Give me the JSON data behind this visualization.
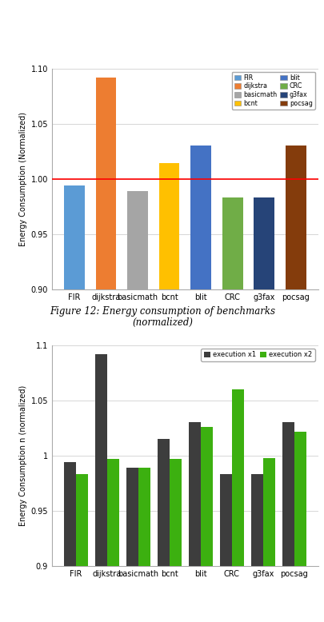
{
  "chart1": {
    "categories": [
      "FIR",
      "dijkstra",
      "basicmath",
      "bcnt",
      "blit",
      "CRC",
      "g3fax",
      "pocsag"
    ],
    "values": [
      0.994,
      1.092,
      0.989,
      1.014,
      1.03,
      0.983,
      0.983,
      1.03
    ],
    "colors": [
      "#5B9BD5",
      "#ED7D31",
      "#A5A5A5",
      "#FFC000",
      "#4472C4",
      "#70AD47",
      "#264478",
      "#843C0C"
    ],
    "ylabel": "Energy Consumption (Normalized)",
    "ylim": [
      0.9,
      1.1
    ],
    "yticks": [
      0.9,
      0.95,
      1.0,
      1.05,
      1.1
    ],
    "ytick_labels": [
      "0.90",
      "0.95",
      "1.00",
      "1.05",
      "1.10"
    ],
    "hline_y": 1.0,
    "hline_color": "#FF0000",
    "legend_labels": [
      "FIR",
      "dijkstra",
      "basicmath",
      "bcnt",
      "blit",
      "CRC",
      "g3fax",
      "pocsag"
    ],
    "legend_colors": [
      "#5B9BD5",
      "#ED7D31",
      "#A5A5A5",
      "#FFC000",
      "#4472C4",
      "#70AD47",
      "#264478",
      "#843C0C"
    ],
    "fig_caption_line1": "Figure 12: Energy consumption of benchmarks",
    "fig_caption_line2": "(normalized)"
  },
  "chart2": {
    "categories": [
      "FIR",
      "dijkstra",
      "basicmath",
      "bcnt",
      "blit",
      "CRC",
      "g3fax",
      "pocsag"
    ],
    "values_x1": [
      0.994,
      1.092,
      0.989,
      1.015,
      1.03,
      0.983,
      0.983,
      1.03
    ],
    "values_x2": [
      0.983,
      0.997,
      0.989,
      0.997,
      1.026,
      1.06,
      0.998,
      1.022
    ],
    "color_x1": "#3D3D3D",
    "color_x2": "#3CB010",
    "ylabel": "Energy Consumption n (normalized)",
    "ylim": [
      0.9,
      1.1
    ],
    "yticks": [
      0.9,
      0.95,
      1.0,
      1.05,
      1.1
    ],
    "ytick_labels": [
      "0.9",
      "0.95",
      "1",
      "1.05",
      "1.1"
    ],
    "legend_x1": "execution x1",
    "legend_x2": "execution x2"
  },
  "bg_color": "#FFFFFF",
  "fig_width": 4.06,
  "fig_height": 7.78,
  "dpi": 100
}
